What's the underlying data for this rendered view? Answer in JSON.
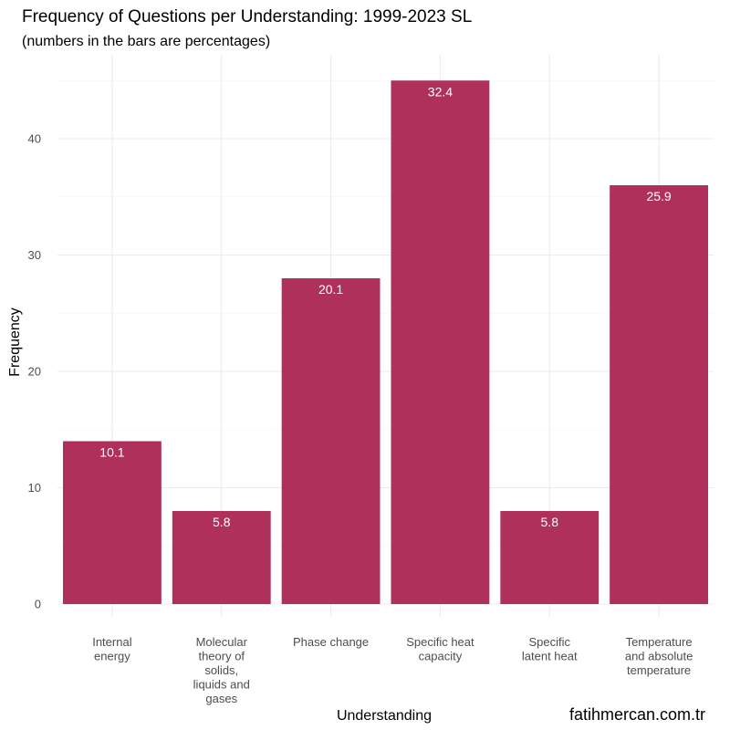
{
  "chart_data": {
    "type": "bar",
    "title": "Frequency of Questions per Understanding: 1999-2023 SL",
    "subtitle": "(numbers in the bars are percentages)",
    "xlabel": "Understanding",
    "ylabel": "Frequency",
    "ylim": [
      0,
      47
    ],
    "yticks": [
      0,
      10,
      20,
      30,
      40
    ],
    "categories": [
      [
        "Internal",
        "energy"
      ],
      [
        "Molecular",
        "theory of",
        "solids,",
        "liquids and",
        "gases"
      ],
      [
        "Phase change"
      ],
      [
        "Specific heat",
        "capacity"
      ],
      [
        "Specific",
        "latent heat"
      ],
      [
        "Temperature",
        "and absolute",
        "temperature"
      ]
    ],
    "values": [
      14,
      8,
      28,
      45,
      8,
      36
    ],
    "percent_labels": [
      "10.1",
      "5.8",
      "20.1",
      "32.4",
      "5.8",
      "25.9"
    ],
    "bar_color": "#b0305c",
    "caption": "fatihmercan.com.tr"
  }
}
